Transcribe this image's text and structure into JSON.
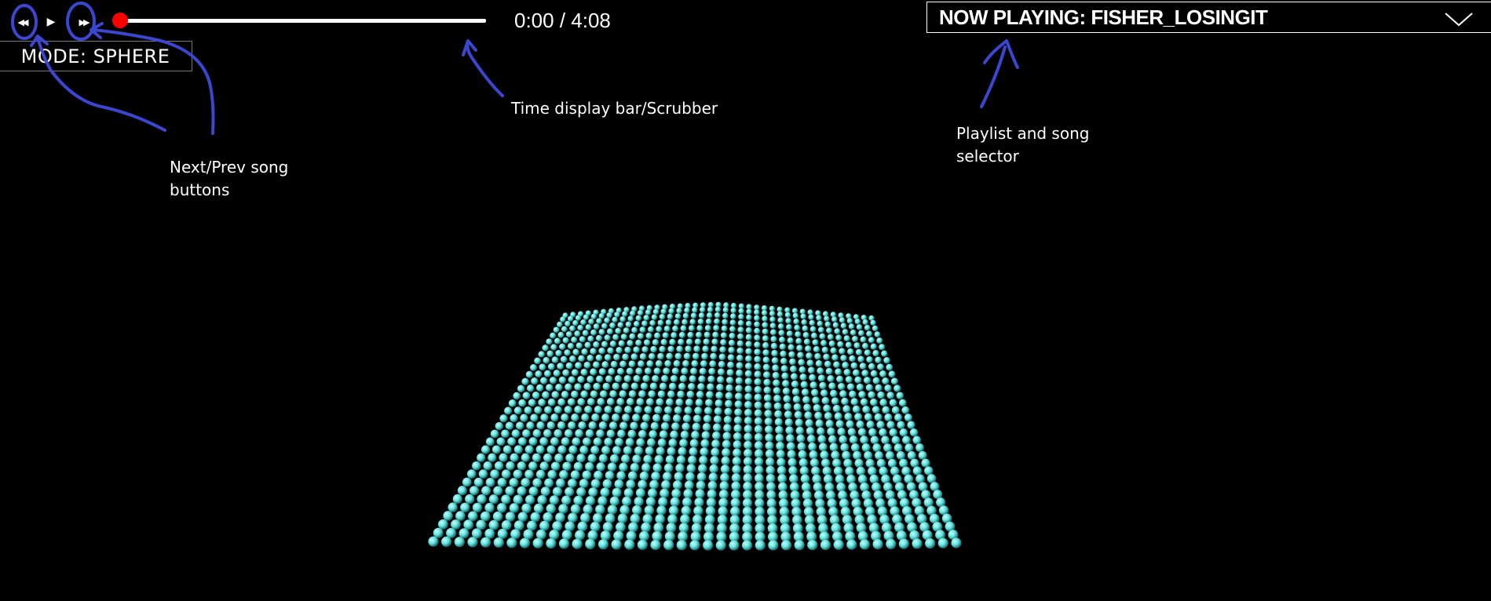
{
  "player": {
    "prev_icon": "◀◀",
    "play_icon": "▶",
    "next_icon": "▶▶",
    "time_display": "0:00 / 4:08",
    "progress": 0.0,
    "mode_label": "MODE: SPHERE",
    "now_playing_label": "NOW PLAYING: FISHER_LOSINGIT",
    "scrubber_color": "#ffffff",
    "handle_color": "#ff0000"
  },
  "annotations": {
    "nav_buttons": "Next/Prev song\nbuttons",
    "time_bar": "Time display bar/Scrubber",
    "playlist": "Playlist and song\nselector",
    "pen_color": "#3b46d1"
  },
  "visualizer": {
    "particle_color": "#5fe0dc",
    "shadow_color": "#1a6a6a"
  }
}
